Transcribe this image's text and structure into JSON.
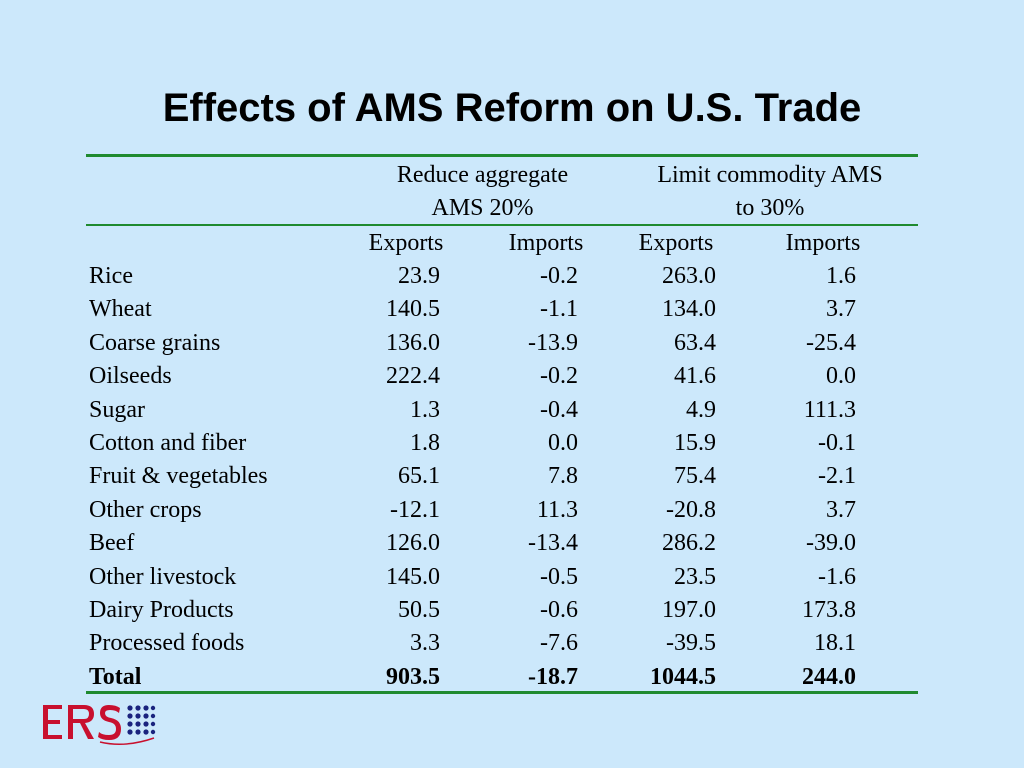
{
  "title": "Effects of AMS Reform on U.S. Trade",
  "groups": [
    {
      "line1": "Reduce aggregate",
      "line2": "AMS 20%"
    },
    {
      "line1": "Limit commodity AMS",
      "line2": "to 30%"
    }
  ],
  "subheaders": [
    "Exports",
    "Imports",
    "Exports",
    "Imports"
  ],
  "rows": [
    {
      "label": "Rice",
      "values": [
        "23.9",
        "-0.2",
        "263.0",
        "1.6"
      ]
    },
    {
      "label": "Wheat",
      "values": [
        "140.5",
        "-1.1",
        "134.0",
        "3.7"
      ]
    },
    {
      "label": "Coarse grains",
      "values": [
        "136.0",
        "-13.9",
        "63.4",
        "-25.4"
      ]
    },
    {
      "label": "Oilseeds",
      "values": [
        "222.4",
        "-0.2",
        "41.6",
        "0.0"
      ]
    },
    {
      "label": "Sugar",
      "values": [
        "1.3",
        "-0.4",
        "4.9",
        "111.3"
      ]
    },
    {
      "label": "Cotton and fiber",
      "values": [
        "1.8",
        "0.0",
        "15.9",
        "-0.1"
      ]
    },
    {
      "label": "Fruit & vegetables",
      "values": [
        "65.1",
        "7.8",
        "75.4",
        "-2.1"
      ]
    },
    {
      "label": "Other crops",
      "values": [
        "-12.1",
        "11.3",
        "-20.8",
        "3.7"
      ]
    },
    {
      "label": "Beef",
      "values": [
        "126.0",
        "-13.4",
        "286.2",
        "-39.0"
      ]
    },
    {
      "label": "Other livestock",
      "values": [
        "145.0",
        "-0.5",
        "23.5",
        "-1.6"
      ]
    },
    {
      "label": "Dairy Products",
      "values": [
        "50.5",
        "-0.6",
        "197.0",
        "173.8"
      ]
    },
    {
      "label": "Processed foods",
      "values": [
        "3.3",
        "-7.6",
        "-39.5",
        "18.1"
      ]
    }
  ],
  "total": {
    "label": "Total",
    "values": [
      "903.5",
      "-18.7",
      "1044.5",
      "244.0"
    ]
  },
  "logo": {
    "text": "ERS",
    "color": "#c8102e",
    "dots_color": "#1a237e"
  },
  "colors": {
    "background": "#cce8fb",
    "rule": "#1f8a2f"
  }
}
